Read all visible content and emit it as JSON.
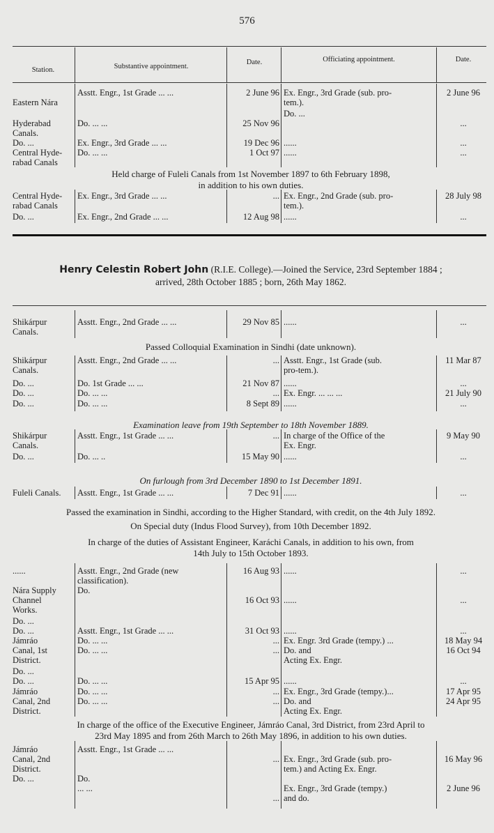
{
  "page_number": "576",
  "columns": [
    "Station.",
    "Substantive appointment.",
    "Date.",
    "Officiating appointment.",
    "Date."
  ],
  "entry": {
    "name": "Henry Celestin Robert John",
    "details": " (R.I.E. College).—Joined the Service, 23rd September 1884 ;\narrived, 28th October 1885 ; born, 26th May 1862."
  },
  "sections": [
    {
      "type": "row",
      "cells": [
        "\nEastern Nára",
        "Asstt. Engr., 1st Grade ...      ...",
        "2 June 96",
        "Ex. Engr., 3rd Grade (sub. pro-\ntem.).",
        "2 June 96"
      ]
    },
    {
      "type": "row",
      "cells": [
        "\nHyderabad\nCanals.",
        "\nDo.                    ...      ...",
        "\n25 Nov 96",
        "            Do.                    ...",
        "\n..."
      ]
    },
    {
      "type": "row",
      "cells": [
        "Do.   ...",
        "Ex. Engr., 3rd Grade    ...     ...",
        "19 Dec 96",
        "             ......",
        "..."
      ]
    },
    {
      "type": "row",
      "cells": [
        "Central Hyde-\nrabad Canals",
        "          Do.                 ...      ...",
        "1  Oct 97",
        "             ......",
        "..."
      ]
    },
    {
      "type": "note",
      "italic": false,
      "text": "Held charge of Fuleli Canals from 1st November 1897 to 6th February 1898,\nin addition to his own duties."
    },
    {
      "type": "row",
      "cells": [
        "Central Hyde-\nrabad Canals",
        "Ex. Engr., 3rd Grade    ...     ...",
        "...",
        "Ex. Engr., 2nd Grade (sub. pro-\ntem.).",
        "28 July 98"
      ]
    },
    {
      "type": "row",
      "cells": [
        "Do.   ...",
        "Ex. Engr., 2nd Grade    ...     ...",
        "12 Aug 98",
        "             ......",
        "..."
      ]
    },
    {
      "type": "row",
      "cells": [
        "Shikárpur\nCanals.",
        "Asstt. Engr., 2nd Grade ...       ...",
        "29 Nov 85",
        "             ......",
        "..."
      ]
    },
    {
      "type": "note",
      "italic": false,
      "text": "Passed Colloquial Examination in Sindhi (date unknown)."
    },
    {
      "type": "row",
      "cells": [
        "Shikárpur\nCanals.",
        "Asstt. Engr., 2nd Grade ...       ...",
        "...",
        "Asstt. Engr., 1st Grade (sub.\n  pro-tem.).",
        "11 Mar 87"
      ]
    },
    {
      "type": "row",
      "cells": [
        "    Do.   ...",
        "      Do.    1st Grade  ...      ...",
        "21 Nov 87",
        "             ......",
        "..."
      ]
    },
    {
      "type": "row",
      "cells": [
        "    Do.   ...",
        "      Do.                  ...      ...",
        "...",
        "Ex. Engr.        ...       ...      ...",
        "21 July 90"
      ]
    },
    {
      "type": "row",
      "cells": [
        "    Do.   ...",
        "      Do.                  ...      ...",
        "8 Sept 89",
        "             ......",
        "..."
      ]
    },
    {
      "type": "note",
      "italic": true,
      "text": "Examination leave from 19th September to 18th November 1889."
    },
    {
      "type": "row",
      "cells": [
        "Shikárpur\nCanals.",
        "Asstt. Engr., 1st Grade ...       ...",
        "...",
        "In charge of the Office of the\n  Ex. Engr.",
        "9 May 90"
      ]
    },
    {
      "type": "row",
      "cells": [
        "Do.      ...",
        "            Do.          ...      ..",
        "15 May 90",
        "             ......",
        "..."
      ]
    },
    {
      "type": "note",
      "italic": true,
      "text": "On furlough from 3rd December 1890 to 1st December 1891."
    },
    {
      "type": "row",
      "cells": [
        "Fuleli Canals.",
        "Asstt. Engr., 1st Grade ...      ...",
        "7 Dec 91",
        "             ......",
        "..."
      ]
    },
    {
      "type": "note",
      "italic": false,
      "text": "Passed the examination in Sindhi, according to the Higher Standard, with credit, on the 4th July 1892."
    },
    {
      "type": "note",
      "italic": false,
      "text": "On Special duty (Indus Flood Survey), from 10th December 1892."
    },
    {
      "type": "note",
      "italic": false,
      "text": "In charge of the duties of Assistant Engineer, Karáchi Canals, in addition to his own, from\n14th July to 15th October 1893."
    },
    {
      "type": "row",
      "cells": [
        "......",
        "Asstt. Engr., 2nd Grade (new\n  classification).",
        "16 Aug 93",
        "             ......",
        "..."
      ]
    },
    {
      "type": "row",
      "cells": [
        "Nára Supply\nChannel\nWorks.",
        "            Do.",
        "\n16 Oct 93",
        "\n             ......",
        "\n..."
      ]
    },
    {
      "type": "row",
      "cells": [
        "    Do.    ...\n    Do.    ...",
        "\nAsstt. Engr., 1st Grade   ...      ...",
        "\n31 Oct 93",
        "\n             ......",
        "\n..."
      ]
    },
    {
      "type": "row",
      "cells": [
        "Jámráo\nCanal, 1st\nDistrict.",
        "            Do.          ...      ...\n            Do.          ...      ...",
        "...\n...",
        "Ex. Engr. 3rd Grade (tempy.) ...\n              Do.                      and\n  Acting Ex. Engr.",
        "18 May 94\n16 Oct 94"
      ]
    },
    {
      "type": "row",
      "cells": [
        "    Do.    ...\n    Do.    ...",
        "\n            Do.          ...      ...",
        "\n15 Apr 95",
        "\n             ......",
        "\n..."
      ]
    },
    {
      "type": "row",
      "cells": [
        "Jámráo\nCanal, 2nd\nDistrict.",
        "            Do.          ...      ...\n            Do.          ...      ...",
        "...\n...",
        "Ex. Engr., 3rd Grade (tempy.)...\n              Do.                      and\n  Acting Ex. Engr.",
        "17 Apr 95\n24 Apr 95"
      ]
    },
    {
      "type": "note",
      "italic": false,
      "text": "In charge of the office of the Executive Engineer, Jámráo Canal, 3rd District, from 23rd April to\n23rd May 1895 and from 26th March to 26th May 1896, in addition to his own duties."
    },
    {
      "type": "row",
      "cells": [
        "Jámráo\nCanal, 2nd\nDistrict.\n    Do.    ...",
        "Asstt. Engr., 1st Grade ...       ...\n\n\n            Do.\n                         ...       ...",
        "\n...\n\n\n\n...",
        "\nEx. Engr., 3rd Grade (sub. pro-\n  tem.) and Acting Ex. Engr.\n\nEx. Engr., 3rd Grade (tempy.)\n  and                  do.",
        "\n16 May 96\n\n\n2 June 96"
      ]
    }
  ]
}
